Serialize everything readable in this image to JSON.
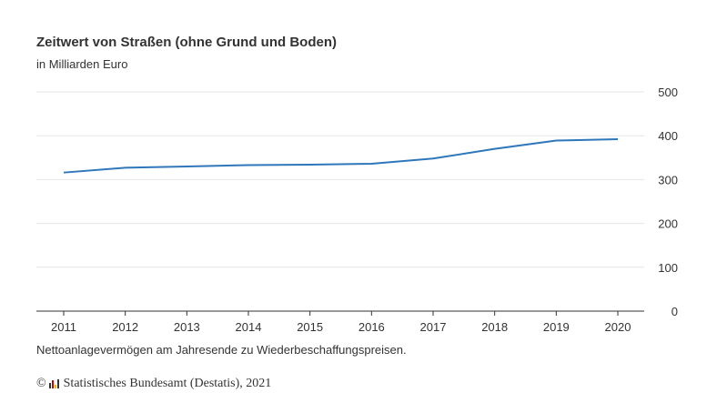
{
  "chart_data": {
    "type": "line",
    "title": "Zeitwert von Straßen (ohne Grund und Boden)",
    "subtitle": "in Milliarden Euro",
    "categories": [
      "2011",
      "2012",
      "2013",
      "2014",
      "2015",
      "2016",
      "2017",
      "2018",
      "2019",
      "2020"
    ],
    "values": [
      316,
      327,
      330,
      333,
      334,
      336,
      348,
      370,
      389,
      392
    ],
    "ylim": [
      0,
      500
    ],
    "yticks": [
      "0",
      "100",
      "200",
      "300",
      "400",
      "500"
    ],
    "grid": true,
    "line_color": "#2f77bb",
    "note": "Nettoanlagevermögen am Jahresende zu Wiederbeschaffungspreisen.",
    "credit": "Statistisches Bundesamt (Destatis), 2021",
    "credit_symbol": "©"
  }
}
